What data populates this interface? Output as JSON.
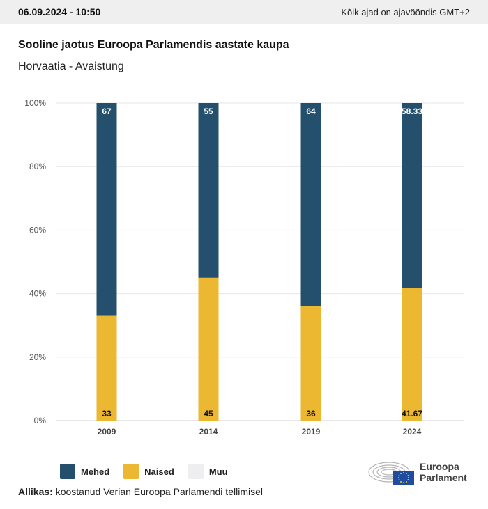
{
  "header": {
    "timestamp": "06.09.2024 - 10:50",
    "timezone_note": "Kõik ajad on ajavööndis GMT+2"
  },
  "chart_data": {
    "type": "bar",
    "stacked": true,
    "title": "Sooline jaotus Euroopa Parlamendis aastate kaupa",
    "subtitle": "Horvaatia - Avaistung",
    "categories": [
      "2009",
      "2014",
      "2019",
      "2024"
    ],
    "series": [
      {
        "name": "Naised",
        "values": [
          33,
          45,
          36,
          41.67
        ],
        "color": "#ecb731"
      },
      {
        "name": "Mehed",
        "values": [
          67,
          55,
          64,
          58.33
        ],
        "color": "#24506e"
      }
    ],
    "ylim": [
      0,
      100
    ],
    "yticks": [
      "0%",
      "20%",
      "40%",
      "60%",
      "80%",
      "100%"
    ],
    "grid": true,
    "xlabel": "",
    "ylabel": ""
  },
  "legend": [
    {
      "label": "Mehed",
      "color": "#24506e"
    },
    {
      "label": "Naised",
      "color": "#ecb731"
    },
    {
      "label": "Muu",
      "color": "#eeeef0"
    }
  ],
  "source": {
    "label": "Allikas:",
    "text": "koostanud Verian Euroopa Parlamendi tellimisel"
  },
  "logo": {
    "line1": "Euroopa",
    "line2": "Parlament"
  }
}
